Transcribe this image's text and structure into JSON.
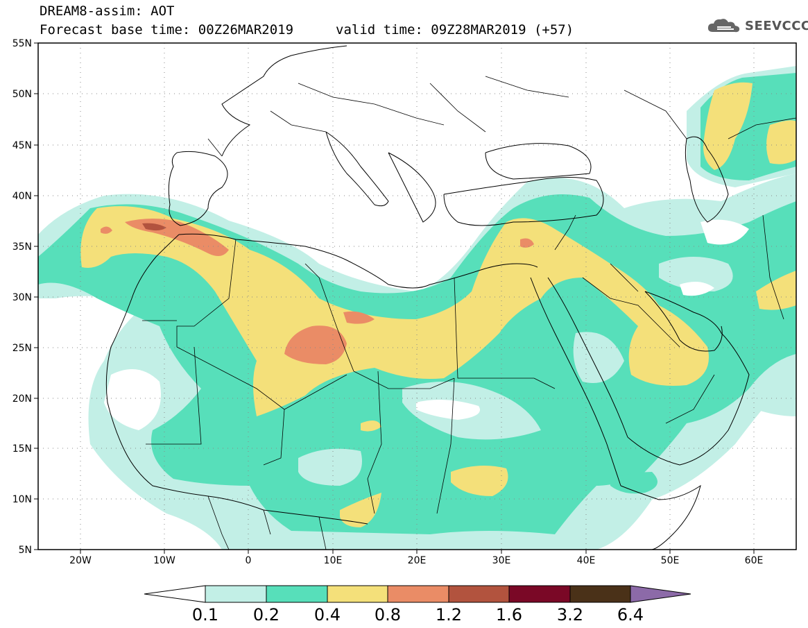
{
  "header": {
    "model_title": "DREAM8-assim: AOT",
    "base_time": "Forecast base time: 00Z26MAR2019",
    "valid_time": "valid time: 09Z28MAR2019 (+57)"
  },
  "logo": {
    "text": "SEEVCCC",
    "icon": "cloud-icon"
  },
  "map": {
    "lat_labels": [
      "55N",
      "50N",
      "45N",
      "40N",
      "35N",
      "30N",
      "25N",
      "20N",
      "15N",
      "10N",
      "5N"
    ],
    "lon_labels": [
      "20W",
      "10W",
      "0",
      "10E",
      "20E",
      "30E",
      "40E",
      "50E",
      "60E"
    ],
    "grid": "dotted"
  },
  "colorbar": {
    "labels": [
      "0.1",
      "0.2",
      "0.4",
      "0.8",
      "1.2",
      "1.6",
      "3.2",
      "6.4"
    ],
    "colors": [
      "#ffffff",
      "#c2efe6",
      "#57dfba",
      "#f4e07a",
      "#ea8c66",
      "#b2533e",
      "#7a0826",
      "#4a3118",
      "#8c6aa8"
    ]
  }
}
